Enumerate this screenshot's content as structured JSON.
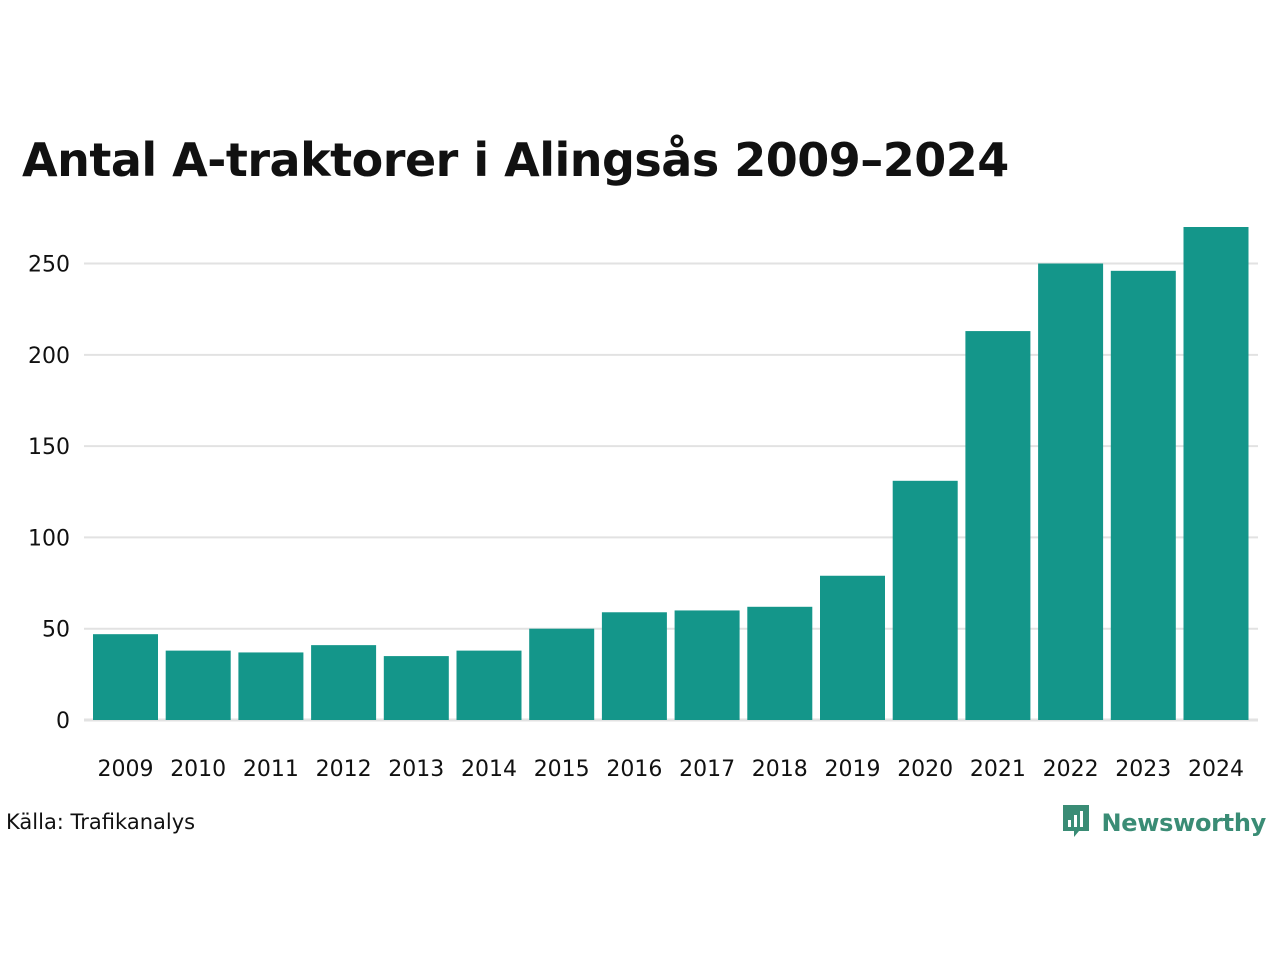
{
  "chart_data": {
    "type": "bar",
    "title": "Antal A-traktorer i Alingsås 2009–2024",
    "categories": [
      "2009",
      "2010",
      "2011",
      "2012",
      "2013",
      "2014",
      "2015",
      "2016",
      "2017",
      "2018",
      "2019",
      "2020",
      "2021",
      "2022",
      "2023",
      "2024"
    ],
    "values": [
      47,
      38,
      37,
      41,
      35,
      38,
      50,
      59,
      60,
      62,
      79,
      131,
      213,
      250,
      246,
      270
    ],
    "yticks": [
      0,
      50,
      100,
      150,
      200,
      250
    ],
    "ylim": [
      0,
      270
    ],
    "grid": true,
    "bar_color": "#14968a",
    "grid_color": "#e2e2e2"
  },
  "footer": {
    "source": "Källa: Trafikanalys",
    "brand": "Newsworthy",
    "brand_icon": "newsworthy-logo-icon",
    "brand_color": "#3a8c75"
  }
}
